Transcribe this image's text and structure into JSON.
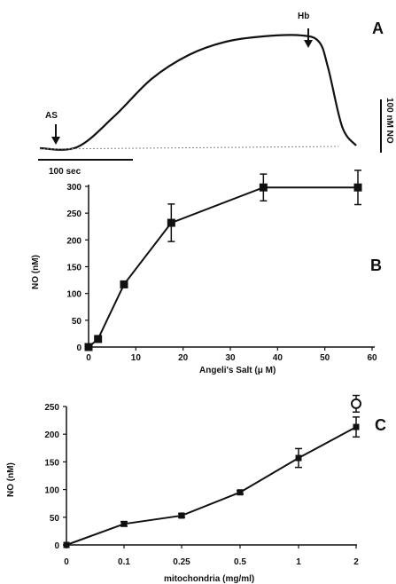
{
  "chart_data": [
    {
      "type": "line",
      "panel_label": "A",
      "annotations": {
        "start_marker": "AS",
        "stop_marker": "Hb"
      },
      "time_scale_label": "100 sec",
      "concentration_scale_label": "100 nM NO",
      "series": [
        {
          "x_sec": [
            0,
            40,
            80,
            120,
            160,
            200,
            240,
            280,
            300,
            310,
            325,
            340
          ],
          "y_nM": [
            0,
            2,
            60,
            130,
            175,
            200,
            210,
            212,
            200,
            150,
            40,
            5
          ]
        }
      ]
    },
    {
      "type": "line",
      "panel_label": "B",
      "xlabel": "Angeli's Salt (μ M)",
      "ylabel": "NO (nM)",
      "xlim": [
        0,
        60
      ],
      "ylim": [
        0,
        300
      ],
      "xticks": [
        "0",
        "10",
        "20",
        "30",
        "40",
        "50",
        "60"
      ],
      "yticks": [
        "0",
        "50",
        "100",
        "150",
        "200",
        "250",
        "300"
      ],
      "x": [
        0,
        2,
        7.5,
        17.5,
        37,
        57
      ],
      "values": [
        0,
        15,
        117,
        232,
        298,
        298
      ],
      "errors": [
        0,
        3,
        5,
        35,
        25,
        32
      ]
    },
    {
      "type": "line",
      "panel_label": "C",
      "xlabel": "mitochondria (mg/ml)",
      "ylabel": "NO (nM)",
      "ylim": [
        0,
        250
      ],
      "categories": [
        "0",
        "0.1",
        "0.25",
        "0.5",
        "1",
        "2"
      ],
      "yticks": [
        "0",
        "50",
        "100",
        "150",
        "200",
        "250"
      ],
      "values": [
        0,
        38,
        53,
        95,
        157,
        213
      ],
      "errors": [
        0,
        4,
        3,
        3,
        17,
        18
      ],
      "extra_point": {
        "category": "2",
        "value": 255,
        "error": 15,
        "marker": "open-circle"
      }
    }
  ]
}
